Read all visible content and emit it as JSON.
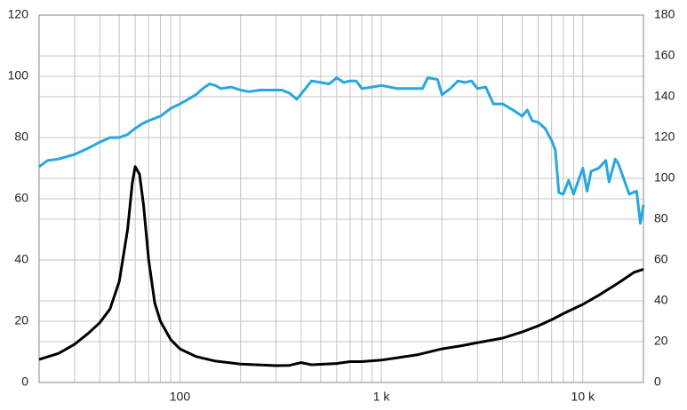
{
  "chart_data": {
    "type": "line",
    "xlog": true,
    "xlim": [
      20,
      20000
    ],
    "xticks": [
      {
        "value": 100,
        "label": "100"
      },
      {
        "value": 1000,
        "label": "1 k"
      },
      {
        "value": 10000,
        "label": "10 k"
      }
    ],
    "x_minor_ticks": [
      30,
      40,
      50,
      60,
      70,
      80,
      90,
      200,
      300,
      400,
      500,
      600,
      700,
      800,
      900,
      2000,
      3000,
      4000,
      5000,
      6000,
      7000,
      8000,
      9000
    ],
    "ylim": [
      0,
      120
    ],
    "yticks": [
      0,
      20,
      40,
      60,
      80,
      100,
      120
    ],
    "y2lim": [
      0,
      180
    ],
    "y2ticks": [
      0,
      20,
      40,
      60,
      80,
      100,
      120,
      140,
      160,
      180
    ],
    "grid": true,
    "series": [
      {
        "color": "#27a7df",
        "x": [
          20,
          22,
          25,
          30,
          35,
          40,
          45,
          50,
          55,
          60,
          65,
          70,
          80,
          90,
          100,
          110,
          120,
          130,
          140,
          150,
          160,
          180,
          200,
          220,
          250,
          280,
          320,
          350,
          380,
          420,
          450,
          500,
          550,
          600,
          650,
          700,
          750,
          800,
          900,
          1000,
          1100,
          1200,
          1300,
          1400,
          1600,
          1700,
          1900,
          2000,
          2200,
          2400,
          2600,
          2800,
          3000,
          3300,
          3600,
          4000,
          4500,
          5000,
          5300,
          5600,
          6000,
          6500,
          7000,
          7300,
          7600,
          8000,
          8500,
          9000,
          10000,
          10500,
          11000,
          12000,
          13000,
          13500,
          14500,
          15000,
          17000,
          18500,
          19300,
          20000
        ],
        "values": [
          70.5,
          72.5,
          73,
          74.5,
          76.5,
          78.5,
          80,
          80,
          81,
          83,
          84.5,
          85.5,
          87,
          89.5,
          91,
          92.5,
          94,
          96,
          97.5,
          97,
          96,
          96.5,
          95.5,
          95,
          95.5,
          95.5,
          95.5,
          94.5,
          92.5,
          96,
          98.5,
          98,
          97.5,
          99.5,
          98,
          98.5,
          98.5,
          96,
          96.5,
          97,
          96.5,
          96,
          96,
          96,
          96,
          99.5,
          99,
          94,
          96,
          98.5,
          98,
          98.5,
          96,
          96.5,
          91,
          91,
          89,
          87,
          89,
          85.5,
          85,
          83,
          79,
          76,
          62,
          61.5,
          66,
          61.5,
          70,
          62.5,
          69,
          70,
          72.5,
          65.5,
          73,
          71.5,
          61.5,
          62.5,
          52,
          58
        ]
      },
      {
        "color": "#000000",
        "x": [
          20,
          25,
          30,
          35,
          40,
          45,
          50,
          55,
          58,
          60,
          63,
          66,
          70,
          75,
          80,
          90,
          100,
          120,
          150,
          200,
          300,
          350,
          400,
          450,
          600,
          700,
          800,
          1000,
          1500,
          2000,
          2500,
          3000,
          4000,
          5000,
          6000,
          7000,
          8000,
          10000,
          12000,
          15000,
          18000,
          20000
        ],
        "values": [
          7.5,
          9.5,
          12.5,
          16,
          19.5,
          24,
          33,
          50,
          65,
          70.5,
          68,
          58,
          40,
          26,
          20,
          14,
          11,
          8.5,
          7,
          6,
          5.5,
          5.6,
          6.5,
          5.8,
          6.2,
          6.8,
          6.8,
          7.3,
          9,
          11,
          12,
          13,
          14.5,
          16.5,
          18.5,
          20.5,
          22.5,
          25.5,
          28.5,
          32.5,
          36,
          37
        ]
      }
    ]
  }
}
